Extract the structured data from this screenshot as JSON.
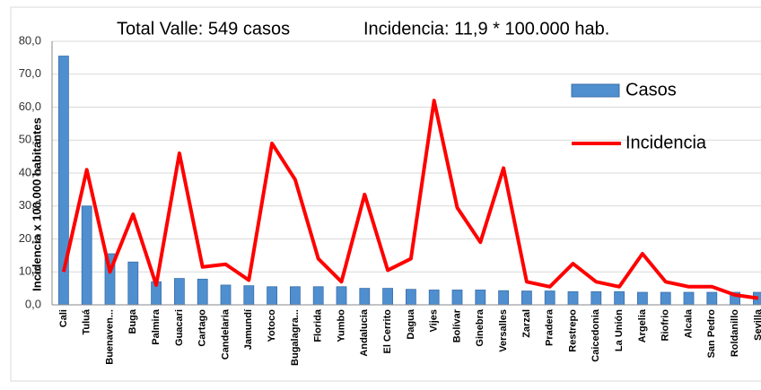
{
  "chart_data": {
    "type": "bar-line",
    "title": "Total Valle: 549 casos",
    "subtitle": "Incidencia: 11,9 * 100.000 hab.",
    "y_label": "Incidencia x 100.000 habitantes",
    "categories": [
      "Cali",
      "Tuluá",
      "Buenaven...",
      "Buga",
      "Palmira",
      "Guacari",
      "Cartago",
      "Candelaria",
      "Jamundí",
      "Yotoco",
      "Bugalagra...",
      "Florida",
      "Yumbo",
      "Andalucia",
      "El Cerrito",
      "Dagua",
      "Vijes",
      "Bolívar",
      "Ginebra",
      "Versalles",
      "Zarzal",
      "Pradera",
      "Restrepo",
      "Caicedonia",
      "La Unión",
      "Argelia",
      "Riofrio",
      "Alcala",
      "San Pedro",
      "Roldanillo",
      "Sevilla"
    ],
    "series": [
      {
        "name": "Casos",
        "kind": "bar",
        "color": "#4f8fd0",
        "values": [
          75.5,
          30,
          15.5,
          13,
          7,
          8,
          7.8,
          6,
          5.8,
          5.5,
          5.5,
          5.5,
          5.5,
          5,
          5,
          4.7,
          4.5,
          4.5,
          4.5,
          4.3,
          4.2,
          4.2,
          4,
          4,
          4,
          3.8,
          3.8,
          3.8,
          3.8,
          3.8,
          3.8
        ]
      },
      {
        "name": "Incidencia",
        "kind": "line",
        "color": "#ff0000",
        "values": [
          10,
          41,
          10,
          27.5,
          6,
          46,
          11.5,
          12.3,
          7.5,
          49,
          38,
          14,
          7,
          33.5,
          10.5,
          14,
          62,
          29.5,
          19,
          41.5,
          7,
          5.5,
          12.5,
          7,
          5.5,
          15.5,
          7,
          5.5,
          5.5,
          3,
          2
        ]
      }
    ],
    "ylim": [
      0,
      80
    ],
    "yticks": [
      {
        "value": 0,
        "label": "0,0"
      },
      {
        "value": 10,
        "label": "10,0"
      },
      {
        "value": 20,
        "label": "20,0"
      },
      {
        "value": 30,
        "label": "30,0"
      },
      {
        "value": 40,
        "label": "40,0"
      },
      {
        "value": 50,
        "label": "50,0"
      },
      {
        "value": 60,
        "label": "60,0"
      },
      {
        "value": 70,
        "label": "70,0"
      },
      {
        "value": 80,
        "label": "80,0"
      }
    ],
    "grid": true
  }
}
